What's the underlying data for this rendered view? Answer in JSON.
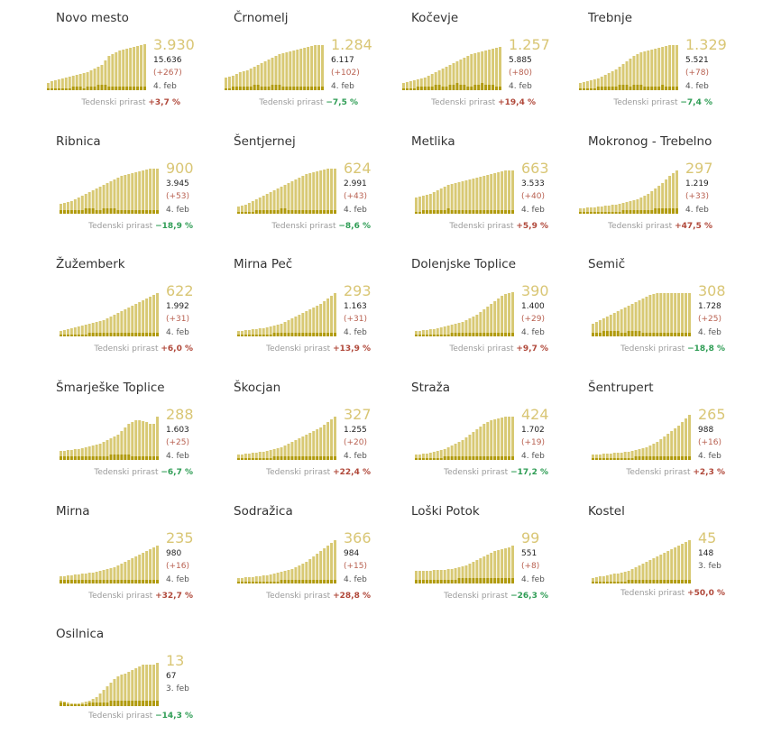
{
  "growth_label": "Tedenski prirast",
  "colors": {
    "area": "#d8c974",
    "bar": "#b09a0c",
    "value": "#d9c675",
    "up": "#b0483a",
    "down": "#2f9d55"
  },
  "chart_data": [
    {
      "type": "bar",
      "name": "Novo mesto",
      "active": "3.930",
      "total": "15.636",
      "delta": "(+267)",
      "date": "4. feb",
      "growth": "+3,7 %",
      "growth_dir": "up",
      "active_series": [
        8,
        10,
        11,
        12,
        13,
        14,
        15,
        16,
        17,
        18,
        19,
        20,
        22,
        24,
        26,
        28,
        33,
        38,
        40,
        42,
        44,
        45,
        46,
        47,
        48,
        49,
        50,
        51
      ],
      "daily_series": [
        1,
        1,
        1,
        1,
        1,
        1,
        1,
        2,
        2,
        2,
        1,
        2,
        2,
        2,
        3,
        3,
        3,
        2,
        2,
        2,
        2,
        2,
        2,
        2,
        2,
        2,
        2,
        2
      ]
    },
    {
      "type": "bar",
      "name": "Črnomelj",
      "active": "1.284",
      "total": "6.117",
      "delta": "(+102)",
      "date": "4. feb",
      "growth": "−7,5 %",
      "growth_dir": "down",
      "active_series": [
        14,
        15,
        16,
        18,
        20,
        21,
        22,
        24,
        26,
        28,
        30,
        32,
        34,
        36,
        38,
        40,
        41,
        42,
        43,
        44,
        45,
        46,
        47,
        48,
        49,
        50,
        50,
        50
      ],
      "daily_series": [
        1,
        1,
        2,
        2,
        2,
        2,
        2,
        2,
        3,
        3,
        2,
        2,
        2,
        3,
        3,
        3,
        2,
        2,
        2,
        2,
        2,
        2,
        2,
        2,
        2,
        2,
        2,
        2
      ]
    },
    {
      "type": "bar",
      "name": "Kočevje",
      "active": "1.257",
      "total": "5.885",
      "delta": "(+80)",
      "date": "4. feb",
      "growth": "+19,4 %",
      "growth_dir": "up",
      "active_series": [
        8,
        9,
        10,
        11,
        12,
        13,
        14,
        16,
        18,
        20,
        22,
        24,
        26,
        28,
        30,
        32,
        34,
        36,
        38,
        40,
        41,
        42,
        43,
        44,
        45,
        46,
        47,
        48
      ],
      "daily_series": [
        1,
        1,
        1,
        1,
        2,
        2,
        2,
        2,
        2,
        3,
        3,
        2,
        2,
        3,
        3,
        4,
        3,
        3,
        2,
        2,
        3,
        3,
        4,
        3,
        3,
        3,
        2,
        2
      ]
    },
    {
      "type": "bar",
      "name": "Trebnje",
      "active": "1.329",
      "total": "5.521",
      "delta": "(+78)",
      "date": "4. feb",
      "growth": "−7,4 %",
      "growth_dir": "down",
      "active_series": [
        8,
        9,
        10,
        11,
        12,
        13,
        15,
        17,
        19,
        21,
        23,
        26,
        29,
        32,
        35,
        38,
        40,
        42,
        43,
        44,
        45,
        46,
        47,
        48,
        49,
        50,
        50,
        50
      ],
      "daily_series": [
        1,
        1,
        1,
        1,
        1,
        2,
        2,
        2,
        2,
        2,
        2,
        3,
        3,
        3,
        2,
        3,
        3,
        3,
        2,
        2,
        2,
        2,
        2,
        3,
        2,
        2,
        2,
        2
      ]
    },
    {
      "type": "bar",
      "name": "Ribnica",
      "active": "900",
      "total": "3.945",
      "delta": "(+53)",
      "date": "4. feb",
      "growth": "−18,9 %",
      "growth_dir": "down",
      "active_series": [
        11,
        12,
        13,
        14,
        16,
        18,
        20,
        22,
        24,
        26,
        28,
        30,
        32,
        34,
        36,
        38,
        40,
        42,
        43,
        44,
        45,
        46,
        47,
        48,
        49,
        50,
        50,
        50
      ],
      "daily_series": [
        2,
        2,
        2,
        2,
        2,
        2,
        2,
        3,
        3,
        3,
        2,
        2,
        3,
        3,
        3,
        3,
        2,
        2,
        2,
        2,
        2,
        2,
        2,
        2,
        2,
        2,
        2,
        2
      ]
    },
    {
      "type": "bar",
      "name": "Šentjernej",
      "active": "624",
      "total": "2.991",
      "delta": "(+43)",
      "date": "4. feb",
      "growth": "−8,6 %",
      "growth_dir": "down",
      "active_series": [
        8,
        9,
        10,
        12,
        14,
        16,
        18,
        20,
        22,
        24,
        26,
        28,
        30,
        32,
        34,
        36,
        38,
        40,
        42,
        44,
        45,
        46,
        47,
        48,
        49,
        50,
        50,
        50
      ],
      "daily_series": [
        1,
        1,
        1,
        1,
        1,
        2,
        2,
        2,
        2,
        2,
        2,
        2,
        3,
        3,
        2,
        2,
        2,
        2,
        2,
        2,
        2,
        2,
        2,
        2,
        2,
        2,
        2,
        2
      ]
    },
    {
      "type": "bar",
      "name": "Metlika",
      "active": "663",
      "total": "3.533",
      "delta": "(+40)",
      "date": "4. feb",
      "growth": "+5,9 %",
      "growth_dir": "up",
      "active_series": [
        18,
        19,
        20,
        21,
        22,
        24,
        26,
        28,
        30,
        32,
        33,
        34,
        35,
        36,
        37,
        38,
        39,
        40,
        41,
        42,
        43,
        44,
        45,
        46,
        47,
        48,
        48,
        48
      ],
      "daily_series": [
        1,
        1,
        2,
        2,
        2,
        2,
        2,
        2,
        2,
        3,
        2,
        2,
        2,
        2,
        2,
        2,
        2,
        2,
        2,
        2,
        2,
        2,
        2,
        2,
        2,
        2,
        2,
        2
      ]
    },
    {
      "type": "bar",
      "name": "Mokronog - Trebelno",
      "active": "297",
      "total": "1.219",
      "delta": "(+33)",
      "date": "4. feb",
      "growth": "+47,5 %",
      "growth_dir": "up",
      "active_series": [
        6,
        6,
        7,
        7,
        7,
        8,
        8,
        9,
        9,
        10,
        10,
        11,
        12,
        13,
        14,
        15,
        16,
        18,
        20,
        22,
        25,
        28,
        31,
        34,
        38,
        42,
        45,
        48
      ],
      "daily_series": [
        1,
        1,
        1,
        1,
        1,
        1,
        1,
        1,
        1,
        1,
        1,
        1,
        2,
        2,
        2,
        2,
        2,
        2,
        2,
        2,
        2,
        3,
        3,
        3,
        3,
        3,
        3,
        3
      ]
    },
    {
      "type": "bar",
      "name": "Žužemberk",
      "active": "622",
      "total": "1.992",
      "delta": "(+31)",
      "date": "4. feb",
      "growth": "+6,0 %",
      "growth_dir": "up",
      "active_series": [
        6,
        7,
        8,
        9,
        10,
        11,
        12,
        13,
        14,
        15,
        16,
        17,
        18,
        20,
        22,
        24,
        26,
        28,
        30,
        32,
        34,
        36,
        38,
        40,
        42,
        44,
        46,
        48
      ],
      "daily_series": [
        1,
        1,
        1,
        1,
        1,
        1,
        1,
        1,
        2,
        2,
        2,
        2,
        2,
        2,
        2,
        2,
        2,
        2,
        2,
        2,
        2,
        2,
        2,
        2,
        2,
        2,
        2,
        2
      ]
    },
    {
      "type": "bar",
      "name": "Mirna Peč",
      "active": "293",
      "total": "1.163",
      "delta": "(+31)",
      "date": "4. feb",
      "growth": "+13,9 %",
      "growth_dir": "up",
      "active_series": [
        6,
        6,
        7,
        7,
        8,
        8,
        9,
        9,
        10,
        11,
        12,
        13,
        14,
        16,
        18,
        20,
        22,
        24,
        26,
        28,
        30,
        32,
        34,
        36,
        39,
        42,
        45,
        48
      ],
      "daily_series": [
        1,
        1,
        1,
        1,
        1,
        1,
        1,
        1,
        1,
        1,
        2,
        2,
        2,
        2,
        2,
        2,
        2,
        2,
        2,
        2,
        2,
        2,
        2,
        2,
        2,
        2,
        2,
        2
      ]
    },
    {
      "type": "bar",
      "name": "Dolenjske Toplice",
      "active": "390",
      "total": "1.400",
      "delta": "(+29)",
      "date": "4. feb",
      "growth": "+9,7 %",
      "growth_dir": "up",
      "active_series": [
        6,
        6,
        7,
        7,
        8,
        8,
        9,
        10,
        11,
        12,
        13,
        14,
        15,
        16,
        18,
        20,
        22,
        24,
        27,
        30,
        33,
        36,
        39,
        42,
        45,
        47,
        48,
        49
      ],
      "daily_series": [
        1,
        1,
        1,
        1,
        1,
        1,
        1,
        1,
        1,
        1,
        2,
        2,
        2,
        2,
        2,
        2,
        2,
        2,
        2,
        2,
        2,
        2,
        2,
        2,
        2,
        2,
        2,
        2
      ]
    },
    {
      "type": "bar",
      "name": "Semič",
      "active": "308",
      "total": "1.728",
      "delta": "(+25)",
      "date": "4. feb",
      "growth": "−18,8 %",
      "growth_dir": "down",
      "active_series": [
        14,
        16,
        18,
        20,
        22,
        24,
        26,
        28,
        30,
        32,
        34,
        36,
        38,
        40,
        42,
        44,
        46,
        47,
        48,
        48,
        48,
        48,
        48,
        48,
        48,
        48,
        48,
        48
      ],
      "daily_series": [
        2,
        2,
        2,
        3,
        3,
        3,
        3,
        3,
        2,
        2,
        3,
        3,
        3,
        3,
        2,
        2,
        2,
        2,
        2,
        2,
        2,
        2,
        2,
        2,
        2,
        2,
        2,
        2
      ]
    },
    {
      "type": "bar",
      "name": "Šmarješke Toplice",
      "active": "288",
      "total": "1.603",
      "delta": "(+25)",
      "date": "4. feb",
      "growth": "−6,7 %",
      "growth_dir": "down",
      "active_series": [
        10,
        10,
        11,
        11,
        12,
        12,
        13,
        14,
        15,
        16,
        17,
        18,
        20,
        22,
        24,
        26,
        28,
        32,
        36,
        40,
        42,
        44,
        44,
        43,
        42,
        40,
        40,
        48
      ],
      "daily_series": [
        2,
        2,
        2,
        2,
        2,
        2,
        2,
        2,
        2,
        2,
        2,
        2,
        2,
        2,
        3,
        3,
        3,
        3,
        3,
        3,
        2,
        2,
        2,
        2,
        2,
        2,
        2,
        2
      ]
    },
    {
      "type": "bar",
      "name": "Škocjan",
      "active": "327",
      "total": "1.255",
      "delta": "(+20)",
      "date": "4. feb",
      "growth": "+22,4 %",
      "growth_dir": "up",
      "active_series": [
        6,
        6,
        7,
        7,
        8,
        8,
        9,
        9,
        10,
        11,
        12,
        13,
        14,
        16,
        18,
        20,
        22,
        24,
        26,
        28,
        30,
        32,
        34,
        36,
        39,
        42,
        45,
        48
      ],
      "daily_series": [
        1,
        1,
        1,
        1,
        1,
        1,
        1,
        1,
        1,
        1,
        2,
        2,
        2,
        2,
        2,
        2,
        2,
        2,
        2,
        2,
        2,
        2,
        2,
        2,
        2,
        2,
        2,
        2
      ]
    },
    {
      "type": "bar",
      "name": "Straža",
      "active": "424",
      "total": "1.702",
      "delta": "(+19)",
      "date": "4. feb",
      "growth": "−17,2 %",
      "growth_dir": "down",
      "active_series": [
        6,
        6,
        7,
        7,
        8,
        9,
        10,
        11,
        12,
        14,
        16,
        18,
        20,
        22,
        25,
        28,
        31,
        34,
        37,
        40,
        42,
        44,
        45,
        46,
        47,
        48,
        48,
        48
      ],
      "daily_series": [
        1,
        1,
        1,
        1,
        1,
        1,
        1,
        1,
        2,
        2,
        2,
        2,
        2,
        2,
        2,
        2,
        2,
        2,
        2,
        2,
        2,
        2,
        2,
        2,
        2,
        2,
        2,
        2
      ]
    },
    {
      "type": "bar",
      "name": "Šentrupert",
      "active": "265",
      "total": "988",
      "delta": "(+16)",
      "date": "4. feb",
      "growth": "+2,3 %",
      "growth_dir": "up",
      "active_series": [
        6,
        6,
        6,
        7,
        7,
        7,
        8,
        8,
        8,
        9,
        9,
        10,
        11,
        12,
        13,
        14,
        16,
        18,
        20,
        23,
        26,
        29,
        32,
        35,
        38,
        42,
        46,
        50
      ],
      "daily_series": [
        1,
        1,
        1,
        1,
        1,
        1,
        1,
        1,
        1,
        1,
        1,
        1,
        2,
        2,
        2,
        2,
        2,
        2,
        2,
        2,
        2,
        2,
        2,
        2,
        2,
        2,
        2,
        2
      ]
    },
    {
      "type": "bar",
      "name": "Mirna",
      "active": "235",
      "total": "980",
      "delta": "(+16)",
      "date": "4. feb",
      "growth": "+32,7 %",
      "growth_dir": "up",
      "active_series": [
        8,
        8,
        9,
        9,
        10,
        10,
        11,
        11,
        12,
        12,
        13,
        14,
        15,
        16,
        17,
        18,
        20,
        22,
        24,
        26,
        28,
        30,
        32,
        34,
        36,
        38,
        40,
        42
      ],
      "daily_series": [
        2,
        2,
        2,
        2,
        2,
        2,
        2,
        2,
        2,
        2,
        2,
        2,
        2,
        2,
        2,
        2,
        2,
        2,
        2,
        2,
        2,
        2,
        2,
        2,
        2,
        2,
        2,
        2
      ]
    },
    {
      "type": "bar",
      "name": "Sodražica",
      "active": "366",
      "total": "984",
      "delta": "(+15)",
      "date": "4. feb",
      "growth": "+28,8 %",
      "growth_dir": "up",
      "active_series": [
        6,
        6,
        7,
        7,
        7,
        8,
        8,
        9,
        9,
        10,
        11,
        12,
        13,
        14,
        15,
        16,
        18,
        20,
        22,
        24,
        27,
        30,
        33,
        36,
        39,
        42,
        45,
        48
      ],
      "daily_series": [
        1,
        1,
        1,
        1,
        1,
        1,
        1,
        1,
        1,
        1,
        1,
        1,
        2,
        2,
        2,
        2,
        2,
        2,
        2,
        2,
        2,
        2,
        2,
        2,
        2,
        2,
        2,
        2
      ]
    },
    {
      "type": "bar",
      "name": "Loški Potok",
      "active": "99",
      "total": "551",
      "delta": "(+8)",
      "date": "4. feb",
      "growth": "−26,3 %",
      "growth_dir": "down",
      "active_series": [
        14,
        14,
        14,
        14,
        14,
        15,
        15,
        15,
        15,
        16,
        16,
        17,
        18,
        19,
        20,
        22,
        24,
        26,
        28,
        30,
        32,
        34,
        36,
        37,
        38,
        39,
        40,
        42
      ],
      "daily_series": [
        2,
        2,
        2,
        2,
        2,
        2,
        2,
        2,
        2,
        2,
        2,
        2,
        3,
        3,
        3,
        3,
        3,
        3,
        3,
        3,
        3,
        3,
        3,
        3,
        3,
        3,
        3,
        3
      ]
    },
    {
      "type": "bar",
      "name": "Kostel",
      "active": "45",
      "total": "148",
      "delta": "",
      "date": "3. feb",
      "growth": "+50,0 %",
      "growth_dir": "up",
      "active_series": [
        6,
        7,
        8,
        8,
        9,
        10,
        11,
        11,
        12,
        13,
        14,
        16,
        18,
        20,
        22,
        24,
        26,
        28,
        30,
        32,
        34,
        36,
        38,
        40,
        42,
        44,
        46,
        48
      ],
      "daily_series": [
        1,
        1,
        1,
        1,
        1,
        1,
        1,
        1,
        1,
        1,
        2,
        2,
        2,
        2,
        2,
        2,
        2,
        2,
        2,
        2,
        2,
        2,
        2,
        2,
        2,
        2,
        2,
        2
      ]
    },
    {
      "type": "bar",
      "name": "Osilnica",
      "active": "13",
      "total": "67",
      "delta": "",
      "date": "3. feb",
      "growth": "−14,3 %",
      "growth_dir": "down",
      "active_series": [
        6,
        5,
        4,
        3,
        3,
        3,
        4,
        5,
        6,
        8,
        10,
        14,
        18,
        22,
        26,
        30,
        33,
        35,
        36,
        38,
        40,
        42,
        44,
        46,
        46,
        46,
        46,
        48
      ],
      "daily_series": [
        2,
        2,
        1,
        1,
        1,
        1,
        1,
        1,
        2,
        2,
        2,
        2,
        2,
        2,
        3,
        3,
        3,
        3,
        3,
        3,
        3,
        3,
        3,
        3,
        3,
        3,
        3,
        3
      ]
    }
  ]
}
